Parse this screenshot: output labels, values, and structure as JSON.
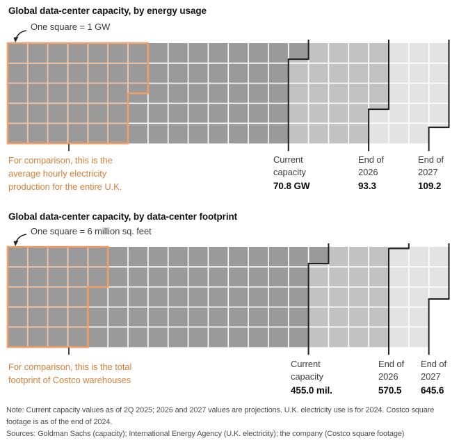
{
  "colors": {
    "current_fill": "#9a9a9a",
    "y2026_fill": "#c2c2c2",
    "y2027_fill": "#e3e3e4",
    "gridline": "#ffffff",
    "boundary_line": "#1f1f1f",
    "comparison_outline": "#ef9e68",
    "comparison_gridline": "#f5c39e",
    "comparison_text": "#d5813b",
    "title_text": "#141414",
    "label_text": "#3e3e3e",
    "note_text": "#4e4e4e"
  },
  "chart_data": [
    {
      "type": "waffle",
      "title": "Global data-center capacity, by energy usage",
      "legend": "One square = 1 GW",
      "rows": 5,
      "cols": 22,
      "unit_per_square": 1,
      "unit": "GW",
      "milestones": [
        {
          "label_line1": "Current",
          "label_line2": "capacity",
          "value": 70.8,
          "value_label": "70.8 GW"
        },
        {
          "label_line1": "End of",
          "label_line2": "2026",
          "value": 93.3,
          "value_label": "93.3"
        },
        {
          "label_line1": "End of",
          "label_line2": "2027",
          "value": 109.2,
          "value_label": "109.2"
        }
      ],
      "comparison": {
        "caption_lines": [
          "For comparison, this is the",
          "average hourly electricity",
          "production for the entire U.K."
        ],
        "outer_cols": 7,
        "outer_rows": 2.5,
        "inner_cols": 6,
        "approx_squares": 32.5
      }
    },
    {
      "type": "waffle",
      "title": "Global data-center capacity, by data-center footprint",
      "legend": "One square = 6 million sq. feet",
      "rows": 5,
      "cols": 22,
      "unit_per_square": 6,
      "unit": "million sq. feet",
      "milestones": [
        {
          "label_line1": "Current",
          "label_line2": "capacity",
          "value": 455.0,
          "value_label": "455.0 mil."
        },
        {
          "label_line1": "End of",
          "label_line2": "2026",
          "value": 570.5,
          "value_label": "570.5"
        },
        {
          "label_line1": "End of",
          "label_line2": "2027",
          "value": 645.6,
          "value_label": "645.6"
        }
      ],
      "comparison": {
        "caption_lines": [
          "For comparison, this is the total",
          "footprint of Costco warehouses"
        ],
        "outer_cols": 5,
        "outer_rows": 2,
        "inner_cols": 4,
        "approx_squares": 22
      }
    }
  ],
  "footer": {
    "note": "Note: Current capacity values as of 2Q 2025; 2026 and 2027 values are projections. U.K. electricity use is for 2024. Costco square footage is as of the end of 2024.",
    "sources": "Sources: Goldman Sachs (capacity); International Energy Agency (U.K. electricity); the company (Costco square footage)"
  }
}
